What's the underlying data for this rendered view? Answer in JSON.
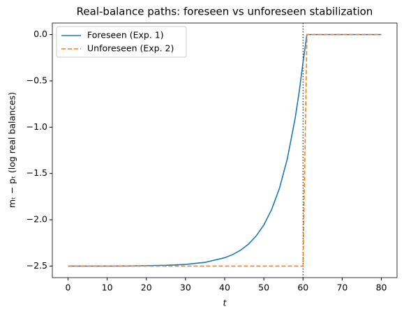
{
  "chart_data": {
    "type": "line",
    "title": "Real-balance paths: foreseen vs unforeseen stabilization",
    "xlabel": "t",
    "ylabel": "mₜ − pₜ (log real balances)",
    "x": [
      0,
      5,
      10,
      15,
      20,
      25,
      30,
      35,
      40,
      42,
      44,
      46,
      48,
      50,
      52,
      54,
      56,
      58,
      59,
      60,
      61,
      65,
      70,
      75,
      80
    ],
    "series": [
      {
        "name": "Foreseen (Exp. 1)",
        "color": "#1f77b4",
        "style": "solid",
        "values": [
          -2.5,
          -2.5,
          -2.5,
          -2.499,
          -2.496,
          -2.492,
          -2.482,
          -2.46,
          -2.41,
          -2.377,
          -2.33,
          -2.266,
          -2.177,
          -2.056,
          -1.888,
          -1.658,
          -1.34,
          -0.902,
          -0.625,
          -0.3,
          0,
          0,
          0,
          0,
          0
        ]
      },
      {
        "name": "Unforeseen (Exp. 2)",
        "color": "#ff7f0e",
        "style": "dashed",
        "values": [
          -2.5,
          -2.5,
          -2.5,
          -2.5,
          -2.5,
          -2.5,
          -2.5,
          -2.5,
          -2.5,
          -2.5,
          -2.5,
          -2.5,
          -2.5,
          -2.5,
          -2.5,
          -2.5,
          -2.5,
          -2.5,
          -2.5,
          -2.5,
          0,
          0,
          0,
          0,
          0
        ]
      }
    ],
    "vline": {
      "x": 60,
      "color": "#000000",
      "style": "dotted"
    },
    "xlim": [
      -4,
      84
    ],
    "xticks": [
      0,
      10,
      20,
      30,
      40,
      50,
      60,
      70,
      80
    ],
    "ylim": [
      -2.625,
      0.125
    ],
    "yticks": [
      {
        "value": 0,
        "label": "0.0"
      },
      {
        "value": -0.5,
        "label": "−0.5"
      },
      {
        "value": -1,
        "label": "−1.0"
      },
      {
        "value": -1.5,
        "label": "−1.5"
      },
      {
        "value": -2,
        "label": "−2.0"
      },
      {
        "value": -2.5,
        "label": "−2.5"
      }
    ],
    "legend": "upper left",
    "grid": false
  }
}
